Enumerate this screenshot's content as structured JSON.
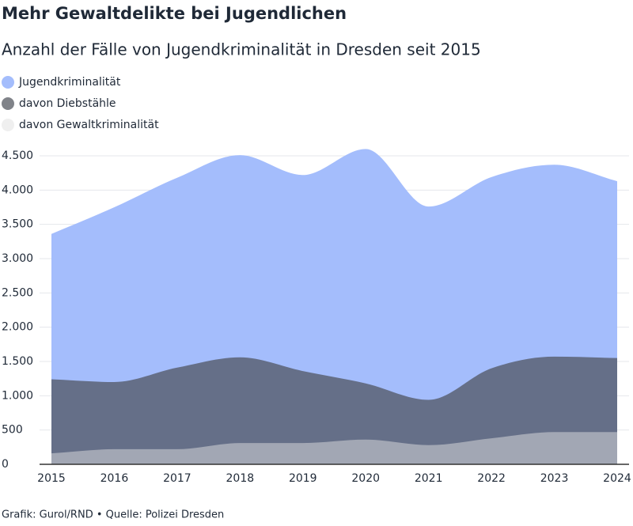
{
  "chart_data": {
    "type": "area",
    "title": "Mehr Gewaltdelikte bei Jugendlichen",
    "subtitle": "Anzahl der Fälle von Jugendkriminalität in Dresden seit 2015",
    "source": "Grafik: Gurol/RND • Quelle: Polizei Dresden",
    "categories": [
      "2015",
      "2016",
      "2017",
      "2018",
      "2019",
      "2020",
      "2021",
      "2022",
      "2023",
      "2024"
    ],
    "series": [
      {
        "name": "Jugendkriminalität",
        "color": "#a4bdfc",
        "values": [
          3360,
          3750,
          4180,
          4510,
          4220,
          4600,
          3760,
          4190,
          4370,
          4130
        ]
      },
      {
        "name": "davon Diebstähle",
        "color": "#4a4f57",
        "values": [
          1240,
          1200,
          1410,
          1560,
          1360,
          1180,
          940,
          1400,
          1570,
          1550
        ]
      },
      {
        "name": "davon Gewaltkriminalität",
        "color": "#e0e0e0",
        "values": [
          160,
          220,
          220,
          310,
          310,
          360,
          280,
          380,
          470,
          470
        ]
      }
    ],
    "ylim": [
      0,
      4500
    ],
    "yticks": [
      0,
      500,
      {
        "value": 1000,
        "label": "1.000"
      },
      {
        "value": 1500,
        "label": "1.500"
      },
      {
        "value": 2000,
        "label": "2.000"
      },
      {
        "value": 2500,
        "label": "2.500"
      },
      {
        "value": 3000,
        "label": "3.000"
      },
      {
        "value": 3500,
        "label": "3.500"
      },
      {
        "value": 4000,
        "label": "4.000"
      },
      {
        "value": 4500,
        "label": "4.500"
      }
    ],
    "grid": true
  }
}
